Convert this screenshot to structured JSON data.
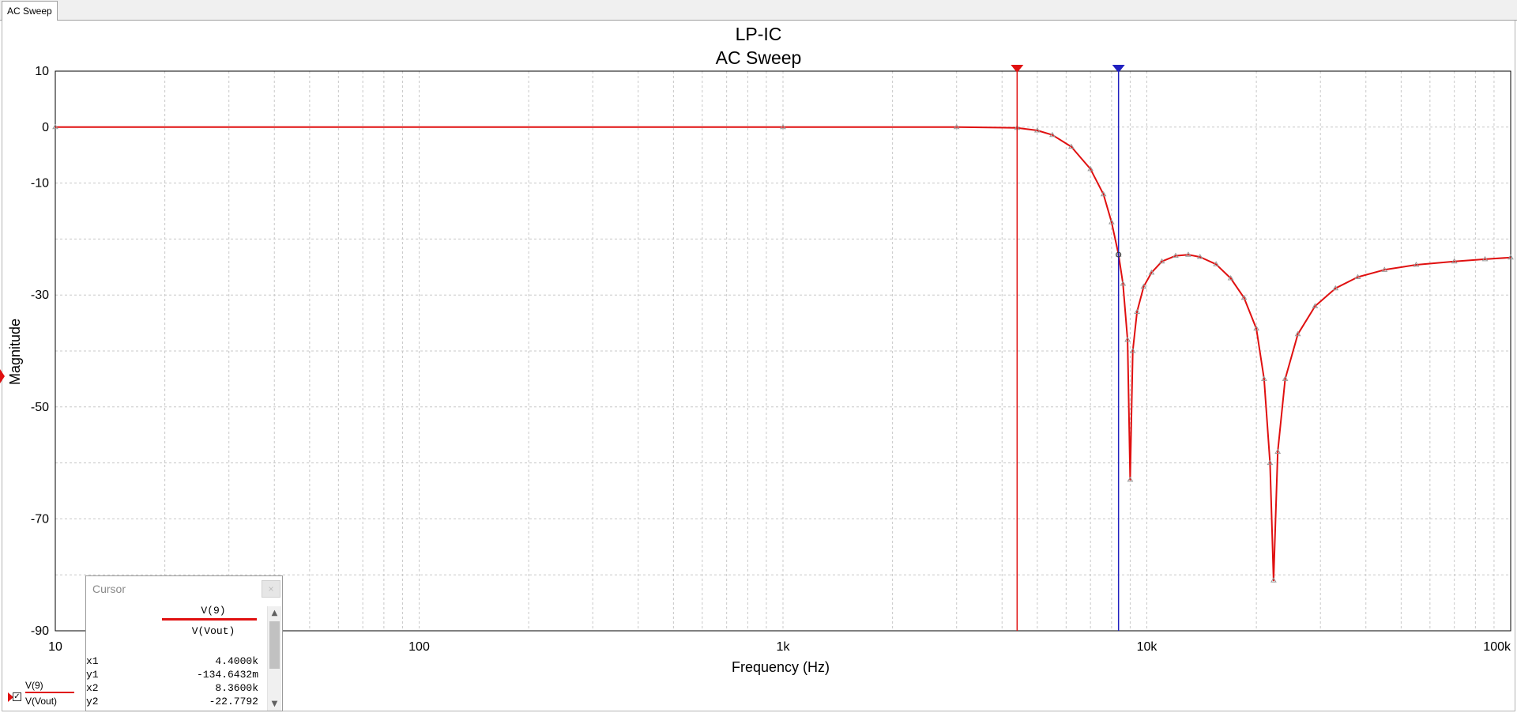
{
  "tabs": [
    {
      "label": "AC Sweep"
    }
  ],
  "chart_data": {
    "type": "line",
    "title": "LP-IC",
    "subtitle": "AC Sweep",
    "xlabel": "Frequency (Hz)",
    "ylabel": "Magnitude",
    "xscale": "log",
    "xlim": [
      10,
      100000
    ],
    "ylim": [
      -90,
      10
    ],
    "x_ticks": [
      {
        "value": 10,
        "label": "10"
      },
      {
        "value": 100,
        "label": "100"
      },
      {
        "value": 1000,
        "label": "1k"
      },
      {
        "value": 10000,
        "label": "10k"
      },
      {
        "value": 100000,
        "label": "100k"
      }
    ],
    "y_ticks": [
      {
        "value": 10,
        "label": "10"
      },
      {
        "value": 0,
        "label": "0"
      },
      {
        "value": -10,
        "label": "-10"
      },
      {
        "value": -30,
        "label": "-30"
      },
      {
        "value": -50,
        "label": "-50"
      },
      {
        "value": -70,
        "label": "-70"
      },
      {
        "value": -90,
        "label": "-90"
      }
    ],
    "grid": true,
    "series": [
      {
        "name": "V(9)",
        "color": "#e01010",
        "points": [
          [
            10,
            0
          ],
          [
            1000,
            0
          ],
          [
            3000,
            0
          ],
          [
            4400,
            -0.13
          ],
          [
            5000,
            -0.6
          ],
          [
            5500,
            -1.4
          ],
          [
            6200,
            -3.5
          ],
          [
            7000,
            -7.5
          ],
          [
            7600,
            -12
          ],
          [
            8000,
            -17
          ],
          [
            8360,
            -22.78
          ],
          [
            8600,
            -28
          ],
          [
            8850,
            -38
          ],
          [
            9000,
            -63
          ],
          [
            9150,
            -40
          ],
          [
            9400,
            -33
          ],
          [
            9800,
            -28.5
          ],
          [
            10300,
            -26
          ],
          [
            11000,
            -24
          ],
          [
            12000,
            -23
          ],
          [
            13000,
            -22.8
          ],
          [
            14000,
            -23.2
          ],
          [
            15500,
            -24.5
          ],
          [
            17000,
            -27
          ],
          [
            18500,
            -30.5
          ],
          [
            20000,
            -36
          ],
          [
            21000,
            -45
          ],
          [
            21800,
            -60
          ],
          [
            22300,
            -81
          ],
          [
            22900,
            -58
          ],
          [
            24000,
            -45
          ],
          [
            26000,
            -37
          ],
          [
            29000,
            -32
          ],
          [
            33000,
            -28.8
          ],
          [
            38000,
            -26.8
          ],
          [
            45000,
            -25.5
          ],
          [
            55000,
            -24.6
          ],
          [
            70000,
            -24
          ],
          [
            85000,
            -23.6
          ],
          [
            100000,
            -23.3
          ]
        ]
      }
    ],
    "cursors": [
      {
        "name": "x1",
        "x": 4400,
        "color": "#e01010"
      },
      {
        "name": "x2",
        "x": 8360,
        "color": "#2020c0"
      }
    ]
  },
  "cursor_panel": {
    "title": "Cursor",
    "close_glyph": "×",
    "trace_name": "V(9)",
    "trace_expr": "V(Vout)",
    "rows": [
      {
        "label": "x1",
        "value": "4.4000k"
      },
      {
        "label": "y1",
        "value": "-134.6432m"
      },
      {
        "label": "x2",
        "value": "8.3600k"
      },
      {
        "label": "y2",
        "value": "-22.7792"
      }
    ]
  },
  "legend": {
    "trace_name": "V(9)",
    "trace_expr": "V(Vout)",
    "check_glyph": "✓"
  }
}
